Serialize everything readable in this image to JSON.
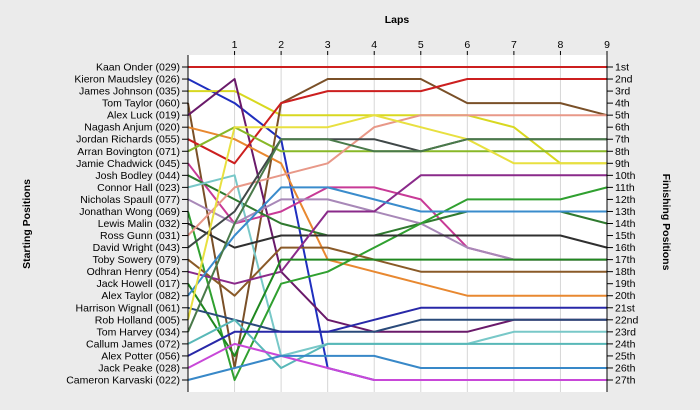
{
  "chart_data": {
    "type": "line",
    "title": "",
    "top_axis_label": "Laps",
    "left_axis_label": "Starting Positions",
    "right_axis_label": "Finishing Positions",
    "laps": [
      0,
      1,
      2,
      3,
      4,
      5,
      6,
      7,
      8,
      9
    ],
    "lap_tick_labels": [
      "1",
      "2",
      "3",
      "4",
      "5",
      "6",
      "7",
      "8",
      "9"
    ],
    "finish_labels": [
      "1st",
      "2nd",
      "3rd",
      "4th",
      "5th",
      "6th",
      "7th",
      "8th",
      "9th",
      "10th",
      "11th",
      "12th",
      "13th",
      "14th",
      "15th",
      "16th",
      "17th",
      "18th",
      "19th",
      "20th",
      "21st",
      "22nd",
      "23rd",
      "24th",
      "25th",
      "26th",
      "27th"
    ],
    "ylim": [
      1,
      27
    ],
    "grid": true,
    "series": [
      {
        "name": "Kaan Onder (029)",
        "color": "#cc1f1f",
        "values": [
          1,
          1,
          1,
          1,
          1,
          1,
          1,
          1,
          1,
          1
        ]
      },
      {
        "name": "Kieron Maudsley (026)",
        "color": "#1f2fbf",
        "values": [
          2,
          4,
          7,
          26,
          27,
          27,
          27,
          27,
          27,
          27
        ]
      },
      {
        "name": "James Johnson (035)",
        "color": "#d8d820",
        "values": [
          3,
          3,
          5,
          5,
          5,
          5,
          5,
          6,
          9,
          9
        ]
      },
      {
        "name": "Tom Taylor (060)",
        "color": "#7a5028",
        "values": [
          4,
          26,
          4,
          2,
          2,
          2,
          4,
          4,
          4,
          5
        ]
      },
      {
        "name": "Alex Luck (019)",
        "color": "#6a1a6a",
        "values": [
          5,
          2,
          18,
          22,
          23,
          23,
          23,
          22,
          22,
          22
        ]
      },
      {
        "name": "Nagash Anjum (020)",
        "color": "#e88830",
        "values": [
          6,
          7,
          9,
          17,
          18,
          19,
          20,
          20,
          20,
          20
        ]
      },
      {
        "name": "Jordan Richards (055)",
        "color": "#cc1f1f",
        "values": [
          7,
          9,
          4,
          3,
          3,
          3,
          2,
          2,
          2,
          2
        ]
      },
      {
        "name": "Arran Bovington (071)",
        "color": "#88b828",
        "values": [
          8,
          6,
          8,
          8,
          8,
          8,
          8,
          8,
          8,
          8
        ]
      },
      {
        "name": "Jamie Chadwick (045)",
        "color": "#c83a96",
        "values": [
          9,
          14,
          13,
          11,
          11,
          12,
          16,
          17,
          17,
          17
        ]
      },
      {
        "name": "Josh Bodley (044)",
        "color": "#2f7a2f",
        "values": [
          10,
          12,
          14,
          15,
          15,
          14,
          13,
          13,
          13,
          14
        ]
      },
      {
        "name": "Connor Hall (023)",
        "color": "#78c8c8",
        "values": [
          11,
          10,
          25,
          24,
          24,
          24,
          24,
          23,
          23,
          23
        ]
      },
      {
        "name": "Nicholas Spaull (077)",
        "color": "#a888b8",
        "values": [
          12,
          14,
          12,
          12,
          13,
          14,
          16,
          17,
          17,
          17
        ]
      },
      {
        "name": "Jonathan Wong (069)",
        "color": "#30a030",
        "values": [
          13,
          27,
          19,
          18,
          16,
          14,
          12,
          12,
          12,
          11
        ]
      },
      {
        "name": "Lewis Malin (032)",
        "color": "#303030",
        "values": [
          14,
          16,
          15,
          15,
          15,
          15,
          15,
          15,
          15,
          16
        ]
      },
      {
        "name": "Ross Gunn (031)",
        "color": "#e89888",
        "values": [
          15,
          11,
          10,
          9,
          6,
          5,
          5,
          5,
          5,
          5
        ]
      },
      {
        "name": "David Wright (043)",
        "color": "#404848",
        "values": [
          16,
          13,
          7,
          7,
          7,
          8,
          7,
          7,
          7,
          7
        ]
      },
      {
        "name": "Toby Sowery (079)",
        "color": "#8a5a28",
        "values": [
          17,
          20,
          16,
          16,
          17,
          18,
          18,
          18,
          18,
          18
        ]
      },
      {
        "name": "Odhran Henry (054)",
        "color": "#8a2a8a",
        "values": [
          18,
          19,
          18,
          13,
          13,
          10,
          10,
          10,
          10,
          10
        ]
      },
      {
        "name": "Jack Howell (017)",
        "color": "#208820",
        "values": [
          19,
          25,
          17,
          17,
          17,
          17,
          17,
          17,
          17,
          17
        ]
      },
      {
        "name": "Alex Taylor (082)",
        "color": "#3a8ccc",
        "values": [
          20,
          15,
          11,
          11,
          12,
          13,
          13,
          13,
          13,
          13
        ]
      },
      {
        "name": "Harrison Wignall (061)",
        "color": "#2a4a7a",
        "values": [
          21,
          22,
          23,
          23,
          23,
          22,
          22,
          22,
          22,
          22
        ]
      },
      {
        "name": "Rob Holland (005)",
        "color": "#e8e040",
        "values": [
          22,
          6,
          6,
          6,
          5,
          6,
          7,
          9,
          9,
          9
        ]
      },
      {
        "name": "Tom Harvey (034)",
        "color": "#4a7a4a",
        "values": [
          23,
          14,
          7,
          7,
          8,
          8,
          7,
          7,
          7,
          7
        ]
      },
      {
        "name": "Callum James (072)",
        "color": "#58b8b8",
        "values": [
          24,
          22,
          26,
          24,
          24,
          24,
          24,
          24,
          24,
          24
        ]
      },
      {
        "name": "Alex Potter (056)",
        "color": "#2828a8",
        "values": [
          25,
          23,
          23,
          23,
          22,
          21,
          21,
          21,
          21,
          21
        ]
      },
      {
        "name": "Jack Peake (028)",
        "color": "#c848d8",
        "values": [
          26,
          24,
          25,
          26,
          27,
          27,
          27,
          27,
          27,
          27
        ]
      },
      {
        "name": "Cameron Karvaski (022)",
        "color": "#3888c8",
        "values": [
          27,
          26,
          25,
          25,
          25,
          26,
          26,
          26,
          26,
          26
        ]
      }
    ]
  }
}
